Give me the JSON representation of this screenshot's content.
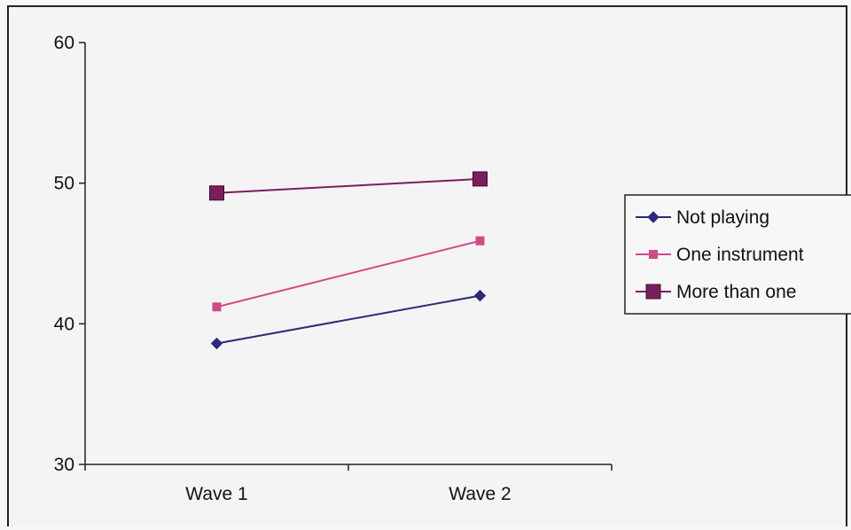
{
  "chart_data": {
    "type": "line",
    "categories": [
      "Wave 1",
      "Wave 2"
    ],
    "ylim": [
      30,
      60
    ],
    "yticks": [
      30,
      40,
      50,
      60
    ],
    "legend_position": "right",
    "series": [
      {
        "name": "Not playing",
        "values": [
          38.6,
          42.0
        ],
        "color": "#2b2b7a",
        "marker": "diamond"
      },
      {
        "name": "One instrument",
        "values": [
          41.2,
          45.9
        ],
        "color": "#d04a8a",
        "marker": "square-small"
      },
      {
        "name": "More than one",
        "values": [
          49.3,
          50.3
        ],
        "color": "#7a1f5c",
        "marker": "square-large"
      }
    ]
  }
}
